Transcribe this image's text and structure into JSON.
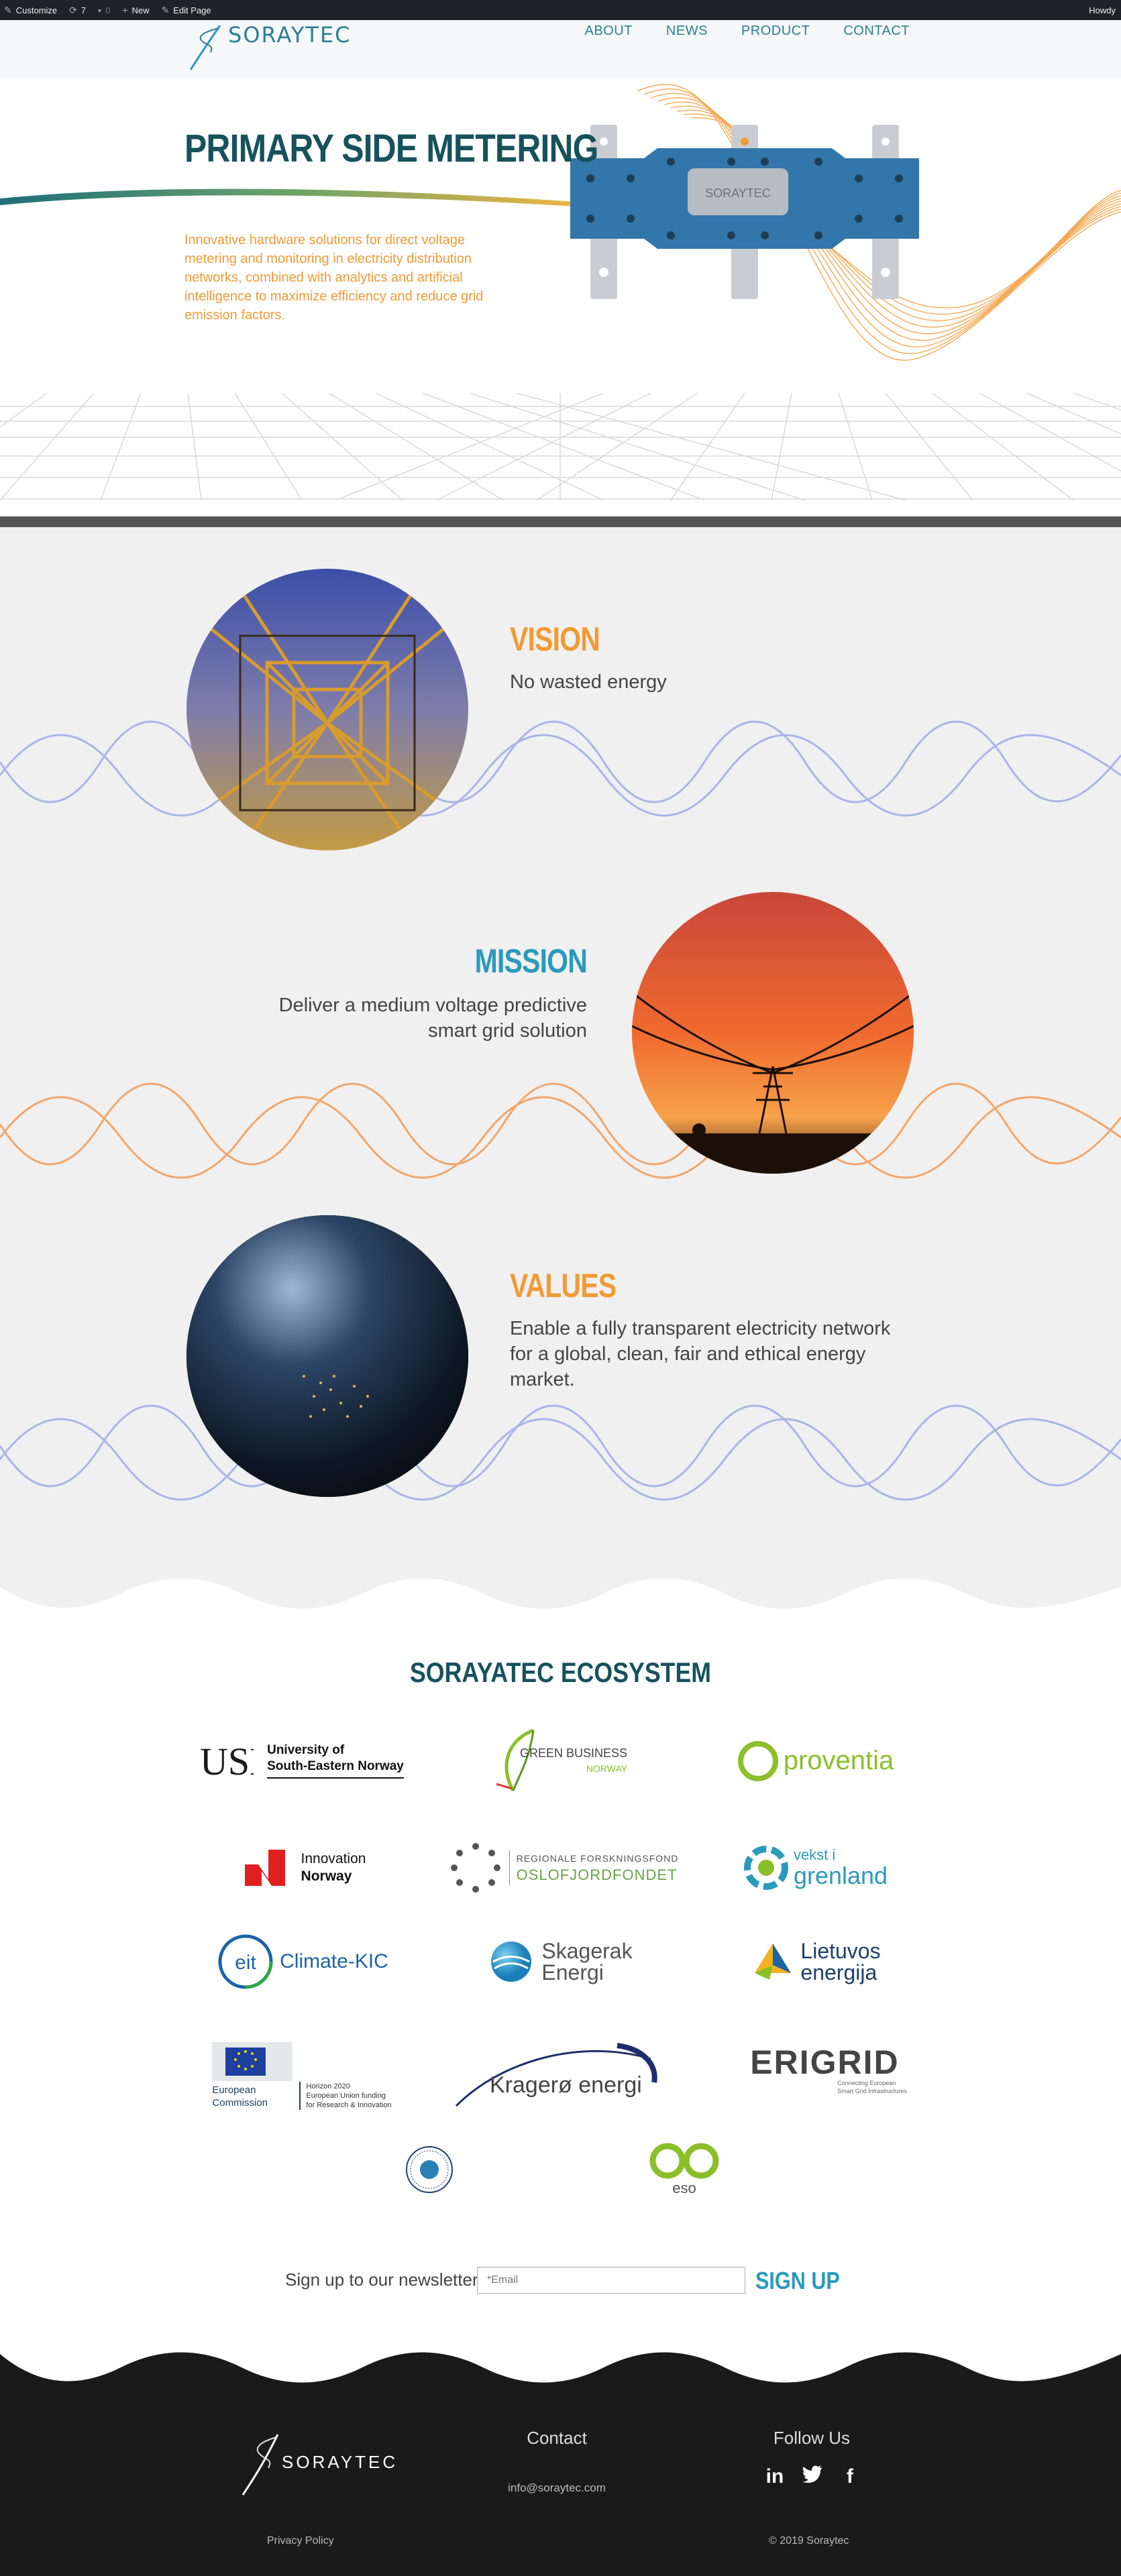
{
  "adminbar": {
    "items": [
      "Customize",
      "7",
      "0",
      "New",
      "Edit Page"
    ],
    "right": "Howdy"
  },
  "header": {
    "logo_text": "SORAYTEC",
    "nav": [
      "ABOUT",
      "NEWS",
      "PRODUCT",
      "CONTACT"
    ]
  },
  "hero": {
    "title": "PRIMARY SIDE METERING",
    "description": "Innovative hardware solutions for direct voltage metering and monitoring in electricity distribution networks, combined with analytics and artificial intelligence to maximize efficiency and reduce grid emission factors.",
    "device_label": "SORAYTEC"
  },
  "sections": [
    {
      "title": "VISION",
      "text": "No wasted energy",
      "color": "#f29a36"
    },
    {
      "title": "MISSION",
      "text_lines": [
        "Deliver a medium voltage predictive",
        "smart grid solution"
      ],
      "color": "#2a9abc"
    },
    {
      "title": "VALUES",
      "text_lines": [
        "Enable a fully transparent electricity network",
        "for a global, clean, fair and ethical energy",
        "market."
      ],
      "color": "#f29a36"
    }
  ],
  "ecosystem": {
    "title": "SORAYATEC ECOSYSTEM",
    "partners": {
      "usn": [
        "University of",
        "South-Eastern Norway"
      ],
      "green_business": [
        "GREEN BUSINESS",
        "NORWAY"
      ],
      "proventia": "proventia",
      "innovation_norway": [
        "Innovation",
        "Norway"
      ],
      "oslofjord": [
        "REGIONALE FORSKNINGSFOND",
        "OSLOFJORDFONDET"
      ],
      "vekst": [
        "vekst i",
        "grenland"
      ],
      "climate_kic": [
        "eit",
        "Climate-KIC"
      ],
      "skagerak": [
        "Skagerak",
        "Energi"
      ],
      "lietuvos": [
        "Lietuvos",
        "energija"
      ],
      "eu": [
        "European",
        "Commission",
        "Horizon 2020",
        "European Union funding",
        "for Research & Innovation"
      ],
      "kragero": "Kragerø energi",
      "erigrid": [
        "ERIGRID",
        "Connecting European",
        "Smart Grid Infrastructures"
      ],
      "eso": "eso"
    }
  },
  "newsletter": {
    "label": "Sign up to our newsletter",
    "placeholder": "*Email",
    "button": "SIGN UP"
  },
  "footer": {
    "logo_text": "SORAYTEC",
    "contact_heading": "Contact",
    "email": "info@soraytec.com",
    "follow_heading": "Follow Us",
    "privacy": "Privacy Policy",
    "copyright": "© 2019 Soraytec"
  }
}
